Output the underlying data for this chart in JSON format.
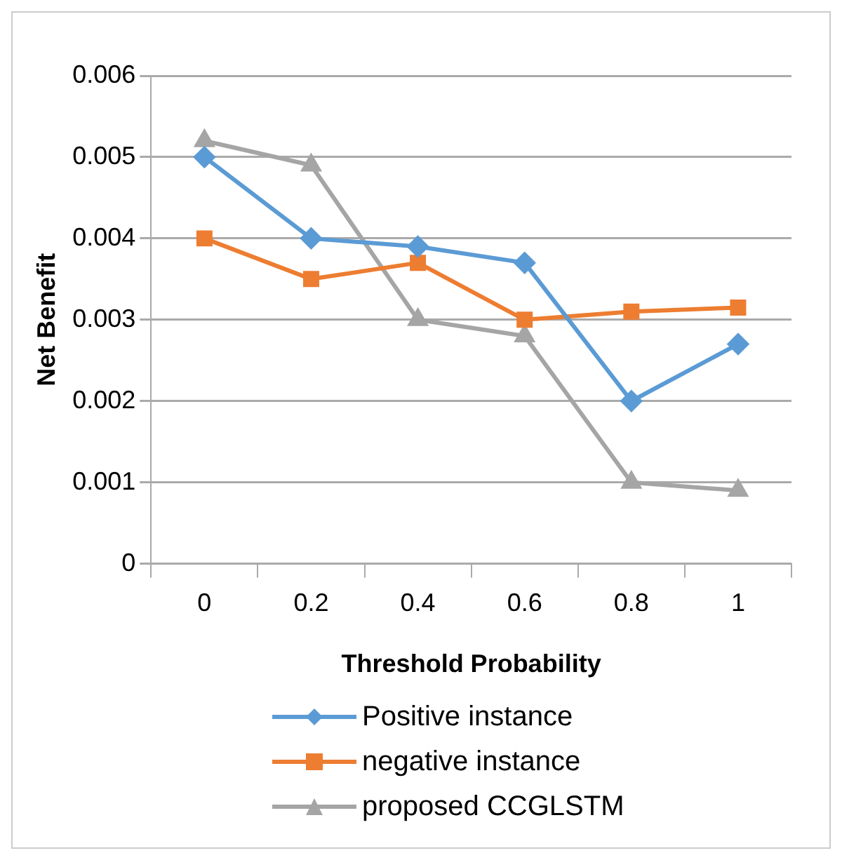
{
  "chart_data": {
    "type": "line",
    "xlabel": "Threshold Probability",
    "ylabel": "Net Benefit",
    "categories": [
      "0",
      "0.2",
      "0.4",
      "0.6",
      "0.8",
      "1"
    ],
    "series": [
      {
        "name": "Positive instance",
        "color": "#5b9bd5",
        "marker": "diamond",
        "values": [
          0.005,
          0.004,
          0.0039,
          0.0037,
          0.002,
          0.0027
        ]
      },
      {
        "name": "negative instance",
        "color": "#ed7d31",
        "marker": "square",
        "values": [
          0.004,
          0.0035,
          0.0037,
          0.003,
          0.0031,
          0.00315
        ]
      },
      {
        "name": "proposed CCGLSTM",
        "color": "#a5a5a5",
        "marker": "triangle",
        "values": [
          0.0052,
          0.0049,
          0.003,
          0.0028,
          0.001,
          0.0009
        ]
      }
    ],
    "ylim": [
      0,
      0.006
    ],
    "yticks": [
      0,
      0.001,
      0.002,
      0.003,
      0.004,
      0.005,
      0.006
    ],
    "grid": "y",
    "legend": "bottom"
  }
}
